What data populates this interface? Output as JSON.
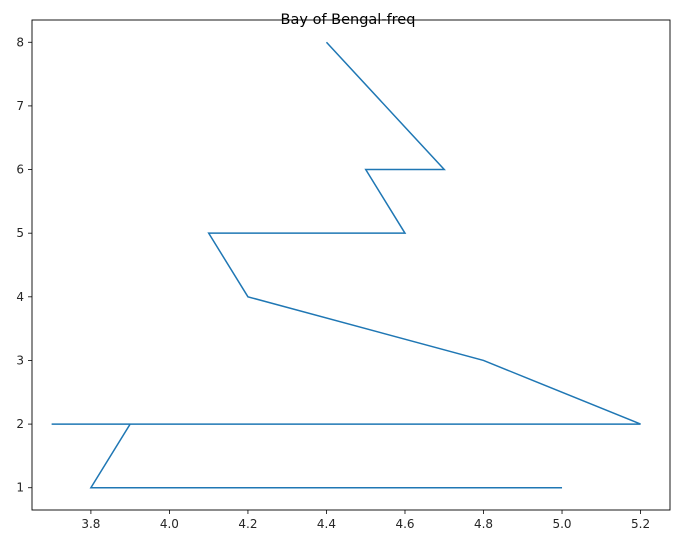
{
  "chart_data": {
    "type": "line",
    "title": "Bay of Bengal-freq",
    "xlabel": "",
    "ylabel": "",
    "xlim": [
      3.65,
      5.275
    ],
    "ylim": [
      0.65,
      8.35
    ],
    "x_ticks": [
      3.8,
      4.0,
      4.2,
      4.4,
      4.6,
      4.8,
      5.0,
      5.2
    ],
    "x_tick_labels": [
      "3.8",
      "4.0",
      "4.2",
      "4.4",
      "4.6",
      "4.8",
      "5.0",
      "5.2"
    ],
    "y_ticks": [
      1,
      2,
      3,
      4,
      5,
      6,
      7,
      8
    ],
    "y_tick_labels": [
      "1",
      "2",
      "3",
      "4",
      "5",
      "6",
      "7",
      "8"
    ],
    "grid": false,
    "series": [
      {
        "color": "#1f77b4",
        "x": [
          5.0,
          3.8,
          3.9,
          3.7,
          5.2,
          4.8,
          4.2,
          4.1,
          4.6,
          4.5,
          4.7,
          4.4
        ],
        "y": [
          1,
          1,
          2,
          2,
          2,
          3,
          4,
          5,
          5,
          6,
          6,
          8
        ]
      }
    ]
  }
}
